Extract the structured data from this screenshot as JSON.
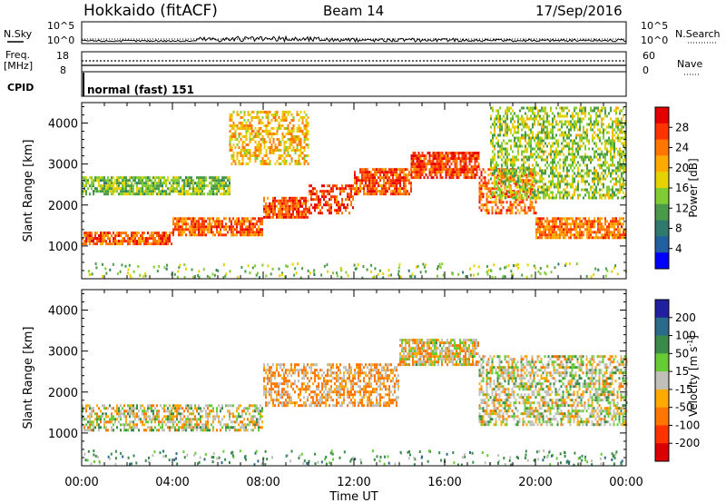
{
  "header": {
    "station": "Hokkaido (fitACF)",
    "beam": "Beam 14",
    "date": "17/Sep/2016"
  },
  "small_panels": {
    "nsky_label": "N.Sky",
    "nsearch_label": "N.Search",
    "freq_label_1": "Freq.",
    "freq_label_2": "[MHz]",
    "nave_label": "Nave",
    "cpid_label": "CPID",
    "cpid_value": "normal (fast) 151",
    "noise_left_ticks": [
      "10^5",
      "10^0"
    ],
    "noise_right_ticks": [
      "10^5",
      "10^0"
    ],
    "freq_ticks": [
      "18",
      "8"
    ],
    "nave_ticks": [
      "60",
      "0"
    ]
  },
  "power_colorbar": {
    "label": "Power [dB]",
    "ticks": [
      "28",
      "24",
      "20",
      "16",
      "12",
      "8",
      "4"
    ],
    "colors": [
      "#e60000",
      "#ff3300",
      "#ff7700",
      "#ffaa00",
      "#e6d200",
      "#80cc33",
      "#4a9a4a",
      "#2e7a6e",
      "#2060a0",
      "#0000ff"
    ]
  },
  "velocity_colorbar": {
    "label": "Velocity [m s",
    "label_sup": "-1",
    "label_end": "]",
    "ticks": [
      "200",
      "100",
      "50",
      "15",
      "-15",
      "-50",
      "-100",
      "-200"
    ],
    "colors": [
      "#2020a0",
      "#2a6a8a",
      "#3a8a4a",
      "#66cc33",
      "#c0c0b8",
      "#ffaa00",
      "#ff7700",
      "#ff3300",
      "#dd0000"
    ]
  },
  "chart_data": [
    {
      "type": "heatmap",
      "panel": "power",
      "ylabel": "Slant Range [km]",
      "ylim": [
        200,
        4500
      ],
      "yticks": [
        1000,
        2000,
        3000,
        4000
      ],
      "xlim_hours": [
        0,
        24
      ],
      "value_unit": "dB",
      "value_range": [
        0,
        32
      ],
      "echo_bands": [
        {
          "from_h": 0.0,
          "to_h": 4.0,
          "range_km": [
            1050,
            1350
          ],
          "power_db": 26
        },
        {
          "from_h": 4.0,
          "to_h": 8.0,
          "range_km": [
            1250,
            1700
          ],
          "power_db": 25
        },
        {
          "from_h": 8.0,
          "to_h": 10.0,
          "range_km": [
            1700,
            2200
          ],
          "power_db": 26
        },
        {
          "from_h": 10.0,
          "to_h": 12.0,
          "range_km": [
            1800,
            2500
          ],
          "power_db": 27
        },
        {
          "from_h": 12.0,
          "to_h": 14.5,
          "range_km": [
            2300,
            2900
          ],
          "power_db": 26
        },
        {
          "from_h": 14.5,
          "to_h": 17.5,
          "range_km": [
            2700,
            3300
          ],
          "power_db": 27
        },
        {
          "from_h": 17.5,
          "to_h": 20.0,
          "range_km": [
            1800,
            2900
          ],
          "power_db": 25
        },
        {
          "from_h": 20.0,
          "to_h": 24.0,
          "range_km": [
            1200,
            1700
          ],
          "power_db": 24
        },
        {
          "from_h": 0.0,
          "to_h": 6.5,
          "range_km": [
            2300,
            2700
          ],
          "power_db": 14
        },
        {
          "from_h": 6.5,
          "to_h": 10.0,
          "range_km": [
            3000,
            4300
          ],
          "power_db": 20
        },
        {
          "from_h": 18.0,
          "to_h": 24.0,
          "range_km": [
            2200,
            4400
          ],
          "power_db": 15
        }
      ]
    },
    {
      "type": "heatmap",
      "panel": "velocity",
      "ylabel": "Slant Range [km]",
      "xlabel": "Time UT",
      "ylim": [
        200,
        4500
      ],
      "yticks": [
        1000,
        2000,
        3000,
        4000
      ],
      "xlim_hours": [
        0,
        24
      ],
      "x_ticks": [
        "00:00",
        "04:00",
        "08:00",
        "12:00",
        "16:00",
        "20:00",
        "00:00"
      ],
      "value_unit": "m s^-1",
      "value_range": [
        -200,
        200
      ],
      "echo_bands": [
        {
          "from_h": 0.0,
          "to_h": 8.0,
          "range_km": [
            1050,
            1700
          ],
          "velocity": 0
        },
        {
          "from_h": 8.0,
          "to_h": 14.0,
          "range_km": [
            1700,
            2700
          ],
          "velocity": -30
        },
        {
          "from_h": 14.0,
          "to_h": 17.5,
          "range_km": [
            2700,
            3300
          ],
          "velocity": -10
        },
        {
          "from_h": 17.5,
          "to_h": 24.0,
          "range_km": [
            1200,
            2900
          ],
          "velocity": 0
        }
      ]
    }
  ]
}
